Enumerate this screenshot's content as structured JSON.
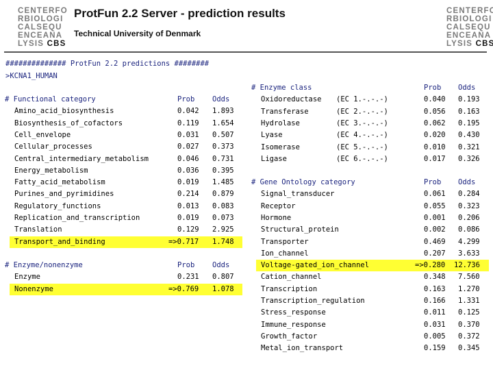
{
  "header": {
    "logo_lines": [
      "CENTERFO",
      "RBIOLOGI",
      "CALSEQU",
      "ENCEANA",
      "LYSIS"
    ],
    "logo_cbs": "CBS",
    "title": "ProtFun 2.2 Server - prediction results",
    "subtitle": "Technical University of Denmark"
  },
  "output": {
    "banner": "############## ProtFun 2.2 predictions ########",
    "sequence_name": ">KCNA1_HUMAN"
  },
  "functional": {
    "header": [
      "# Functional category",
      "Prob",
      "Odds"
    ],
    "rows": [
      {
        "name": "Amino_acid_biosynthesis",
        "prob": "0.042",
        "odds": "1.893"
      },
      {
        "name": "Biosynthesis_of_cofactors",
        "prob": "0.119",
        "odds": "1.654"
      },
      {
        "name": "Cell_envelope",
        "prob": "0.031",
        "odds": "0.507"
      },
      {
        "name": "Cellular_processes",
        "prob": "0.027",
        "odds": "0.373"
      },
      {
        "name": "Central_intermediary_metabolism",
        "prob": "0.046",
        "odds": "0.731"
      },
      {
        "name": "Energy_metabolism",
        "prob": "0.036",
        "odds": "0.395"
      },
      {
        "name": "Fatty_acid_metabolism",
        "prob": "0.019",
        "odds": "1.485"
      },
      {
        "name": "Purines_and_pyrimidines",
        "prob": "0.214",
        "odds": "0.879"
      },
      {
        "name": "Regulatory_functions",
        "prob": "0.013",
        "odds": "0.083"
      },
      {
        "name": "Replication_and_transcription",
        "prob": "0.019",
        "odds": "0.073"
      },
      {
        "name": "Translation",
        "prob": "0.129",
        "odds": "2.925"
      },
      {
        "name": "Transport_and_binding",
        "prob": "=>0.717",
        "odds": "1.748",
        "highlight": true
      }
    ]
  },
  "enzyme_nonenzyme": {
    "header": [
      "# Enzyme/nonenzyme",
      "Prob",
      "Odds"
    ],
    "rows": [
      {
        "name": "Enzyme",
        "prob": "0.231",
        "odds": "0.807"
      },
      {
        "name": "Nonenzyme",
        "prob": "=>0.769",
        "odds": "1.078",
        "highlight": true
      }
    ]
  },
  "enzyme_class": {
    "header": [
      "# Enzyme class",
      "Prob",
      "Odds"
    ],
    "rows": [
      {
        "name": "Oxidoreductase",
        "ec": "(EC 1.-.-.-)",
        "prob": "0.040",
        "odds": "0.193"
      },
      {
        "name": "Transferase",
        "ec": "(EC 2.-.-.-)",
        "prob": "0.056",
        "odds": "0.163"
      },
      {
        "name": "Hydrolase",
        "ec": "(EC 3.-.-.-)",
        "prob": "0.062",
        "odds": "0.195"
      },
      {
        "name": "Lyase",
        "ec": "(EC 4.-.-.-)",
        "prob": "0.020",
        "odds": "0.430"
      },
      {
        "name": "Isomerase",
        "ec": "(EC 5.-.-.-)",
        "prob": "0.010",
        "odds": "0.321"
      },
      {
        "name": "Ligase",
        "ec": "(EC 6.-.-.-)",
        "prob": "0.017",
        "odds": "0.326"
      }
    ]
  },
  "gene_ontology": {
    "header": [
      "# Gene Ontology category",
      "Prob",
      "Odds"
    ],
    "rows": [
      {
        "name": "Signal_transducer",
        "prob": "0.061",
        "odds": "0.284"
      },
      {
        "name": "Receptor",
        "prob": "0.055",
        "odds": "0.323"
      },
      {
        "name": "Hormone",
        "prob": "0.001",
        "odds": "0.206"
      },
      {
        "name": "Structural_protein",
        "prob": "0.002",
        "odds": "0.086"
      },
      {
        "name": "Transporter",
        "prob": "0.469",
        "odds": "4.299"
      },
      {
        "name": "Ion_channel",
        "prob": "0.207",
        "odds": "3.633"
      },
      {
        "name": "Voltage-gated_ion_channel",
        "prob": "=>0.280",
        "odds": "12.736",
        "highlight": true
      },
      {
        "name": "Cation_channel",
        "prob": "0.348",
        "odds": "7.560"
      },
      {
        "name": "Transcription",
        "prob": "0.163",
        "odds": "1.270"
      },
      {
        "name": "Transcription_regulation",
        "prob": "0.166",
        "odds": "1.331"
      },
      {
        "name": "Stress_response",
        "prob": "0.011",
        "odds": "0.125"
      },
      {
        "name": "Immune_response",
        "prob": "0.031",
        "odds": "0.370"
      },
      {
        "name": "Growth_factor",
        "prob": "0.005",
        "odds": "0.372"
      },
      {
        "name": "Metal_ion_transport",
        "prob": "0.159",
        "odds": "0.345"
      }
    ]
  },
  "colors": {
    "highlight": "#ffff33",
    "header_text": "#1a237e"
  }
}
